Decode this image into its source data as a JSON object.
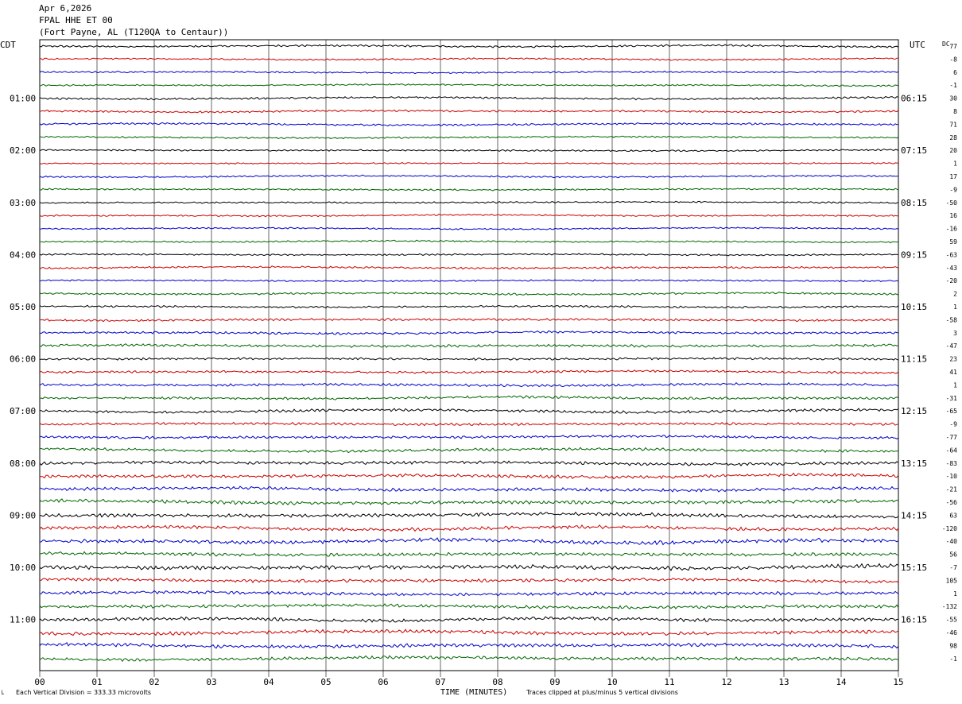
{
  "header": {
    "date": "Apr 6,2026",
    "station": "FPAL HHE ET 00",
    "location": "(Fort Payne, AL (T120QA to Centaur))"
  },
  "left_axis_label": "CDT",
  "right_axis_label": "UTC",
  "dc_label": "DC",
  "footer": {
    "division": "Each Vertical Division =  333.33 microvolts",
    "xlabel": "TIME (MINUTES)",
    "clip": "Traces clipped at plus/minus 5 vertical divisions",
    "corner_mark": "└"
  },
  "chart_data": {
    "type": "line",
    "title": "FPAL HHE ET 00",
    "xlabel": "TIME (MINUTES)",
    "x_ticks": [
      "00",
      "01",
      "02",
      "03",
      "04",
      "05",
      "06",
      "07",
      "08",
      "09",
      "10",
      "11",
      "12",
      "13",
      "14",
      "15"
    ],
    "xlim": [
      0,
      15
    ],
    "trace_colors": [
      "#000000",
      "#cc0000",
      "#0000cc",
      "#006600"
    ],
    "grid": "vertical lines at each minute",
    "left_time_labels": [
      {
        "label": "01:00",
        "trace": 4
      },
      {
        "label": "02:00",
        "trace": 8
      },
      {
        "label": "03:00",
        "trace": 12
      },
      {
        "label": "04:00",
        "trace": 16
      },
      {
        "label": "05:00",
        "trace": 20
      },
      {
        "label": "06:00",
        "trace": 24
      },
      {
        "label": "07:00",
        "trace": 28
      },
      {
        "label": "08:00",
        "trace": 32
      },
      {
        "label": "09:00",
        "trace": 36
      },
      {
        "label": "10:00",
        "trace": 40
      },
      {
        "label": "11:00",
        "trace": 44
      }
    ],
    "right_time_labels": [
      {
        "label": "06:15",
        "trace": 4
      },
      {
        "label": "07:15",
        "trace": 8
      },
      {
        "label": "08:15",
        "trace": 12
      },
      {
        "label": "09:15",
        "trace": 16
      },
      {
        "label": "10:15",
        "trace": 20
      },
      {
        "label": "11:15",
        "trace": 24
      },
      {
        "label": "12:15",
        "trace": 28
      },
      {
        "label": "13:15",
        "trace": 32
      },
      {
        "label": "14:15",
        "trace": 36
      },
      {
        "label": "15:15",
        "trace": 40
      },
      {
        "label": "16:15",
        "trace": 44
      }
    ],
    "dc_offsets": [
      "77",
      "-8",
      "6",
      "-1",
      "30",
      "8",
      "71",
      "28",
      "20",
      "1",
      "17",
      "-9",
      "-50",
      "16",
      "-16",
      "59",
      "-63",
      "-43",
      "-20",
      "2",
      "1",
      "-58",
      "3",
      "-47",
      "23",
      "41",
      "1",
      "-31",
      "-65",
      "-9",
      "-77",
      "-64",
      "-83",
      "-10",
      "-21",
      "-56",
      "63",
      "-120",
      "-40",
      "56",
      "-7",
      "105",
      "1",
      "-132",
      "-55",
      "-46",
      "98",
      "-1"
    ],
    "trace_amplitude_divisions": [
      0.6,
      0.5,
      0.5,
      0.5,
      0.6,
      0.6,
      0.6,
      0.5,
      0.5,
      0.4,
      0.5,
      0.5,
      0.5,
      0.5,
      0.5,
      0.5,
      0.5,
      0.6,
      0.5,
      0.6,
      0.6,
      0.7,
      0.7,
      0.8,
      0.7,
      0.7,
      0.8,
      0.8,
      0.9,
      0.8,
      0.8,
      0.9,
      1.0,
      1.0,
      1.0,
      1.1,
      1.1,
      1.1,
      1.2,
      1.0,
      1.3,
      1.0,
      1.0,
      1.0,
      1.0,
      1.1,
      1.1,
      1.0
    ]
  }
}
